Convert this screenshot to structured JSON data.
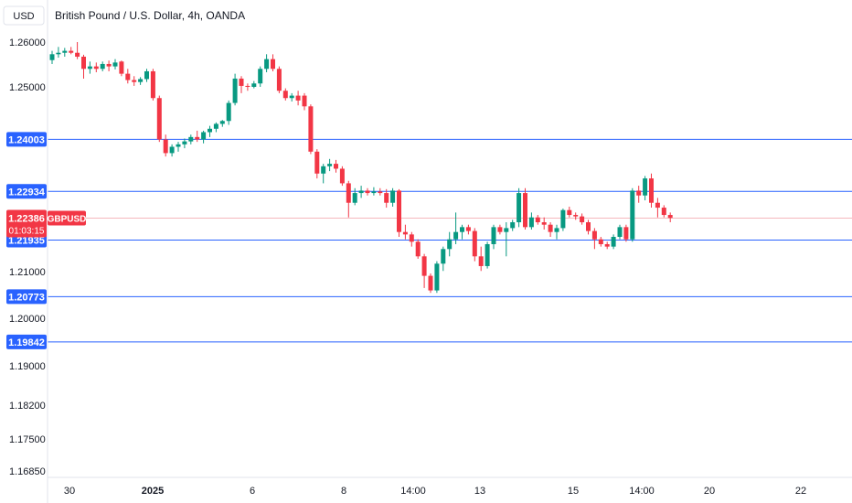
{
  "header": {
    "currency_button": "USD",
    "title": "British Pound / U.S. Dollar, 4h, OANDA"
  },
  "colors": {
    "up": "#089981",
    "down": "#f23645",
    "level_line": "#2962ff",
    "level_badge": "#2962ff",
    "price_badge": "#f23645",
    "price_line": "#f5b7bd"
  },
  "chart_data": {
    "type": "candlestick",
    "symbol": "GBPUSD",
    "y_ticks": [
      "1.26000",
      "1.25000",
      "1.21000",
      "1.20000",
      "1.19000",
      "1.18200",
      "1.17500",
      "1.16850"
    ],
    "x_ticks": [
      "30",
      "2025",
      "6",
      "8",
      "14:00",
      "13",
      "15",
      "14:00",
      "20",
      "22"
    ],
    "levels": [
      1.24003,
      1.22934,
      1.21935,
      1.20773,
      1.19842
    ],
    "level_labels": [
      "1.24003",
      "1.22934",
      "1.21935",
      "1.20773",
      "1.19842"
    ],
    "last_price": "1.22386",
    "last_price_value": 1.22386,
    "countdown": "01:03:15",
    "candles": [
      [
        1.2563,
        1.2582,
        1.2555,
        1.2575
      ],
      [
        1.2575,
        1.259,
        1.2568,
        1.2578
      ],
      [
        1.2578,
        1.2588,
        1.257,
        1.2582
      ],
      [
        1.2582,
        1.259,
        1.2575,
        1.2578
      ],
      [
        1.2578,
        1.26,
        1.2565,
        1.257
      ],
      [
        1.257,
        1.2574,
        1.2525,
        1.2545
      ],
      [
        1.2545,
        1.256,
        1.2535,
        1.255
      ],
      [
        1.255,
        1.2558,
        1.2538,
        1.2545
      ],
      [
        1.2545,
        1.256,
        1.254,
        1.2555
      ],
      [
        1.2555,
        1.2562,
        1.254,
        1.255
      ],
      [
        1.255,
        1.2565,
        1.2544,
        1.2558
      ],
      [
        1.256,
        1.2562,
        1.253,
        1.2535
      ],
      [
        1.2535,
        1.2545,
        1.2515,
        1.2522
      ],
      [
        1.2522,
        1.253,
        1.251,
        1.2518
      ],
      [
        1.2518,
        1.2528,
        1.2512,
        1.2524
      ],
      [
        1.2524,
        1.2545,
        1.2518,
        1.254
      ],
      [
        1.254,
        1.2545,
        1.248,
        1.2485
      ],
      [
        1.2485,
        1.249,
        1.2395,
        1.24
      ],
      [
        1.24,
        1.241,
        1.2365,
        1.2372
      ],
      [
        1.2372,
        1.239,
        1.2365,
        1.2385
      ],
      [
        1.2385,
        1.2395,
        1.2375,
        1.239
      ],
      [
        1.239,
        1.2402,
        1.2382,
        1.2396
      ],
      [
        1.2396,
        1.241,
        1.239,
        1.2405
      ],
      [
        1.2405,
        1.2418,
        1.2395,
        1.24
      ],
      [
        1.24,
        1.2418,
        1.2392,
        1.2415
      ],
      [
        1.2415,
        1.2428,
        1.2405,
        1.2422
      ],
      [
        1.2422,
        1.2435,
        1.2415,
        1.2432
      ],
      [
        1.2432,
        1.244,
        1.2426,
        1.2438
      ],
      [
        1.2438,
        1.248,
        1.243,
        1.2475
      ],
      [
        1.2475,
        1.2535,
        1.247,
        1.2525
      ],
      [
        1.2525,
        1.253,
        1.2495,
        1.251
      ],
      [
        1.251,
        1.2515,
        1.25,
        1.2508
      ],
      [
        1.2508,
        1.252,
        1.2505,
        1.2515
      ],
      [
        1.2515,
        1.255,
        1.2508,
        1.2545
      ],
      [
        1.2545,
        1.2575,
        1.2538,
        1.2565
      ],
      [
        1.2565,
        1.2575,
        1.254,
        1.2545
      ],
      [
        1.2545,
        1.255,
        1.2495,
        1.25
      ],
      [
        1.25,
        1.2505,
        1.248,
        1.2485
      ],
      [
        1.2485,
        1.2495,
        1.2478,
        1.249
      ],
      [
        1.249,
        1.25,
        1.247,
        1.248
      ],
      [
        1.249,
        1.2495,
        1.246,
        1.2468
      ],
      [
        1.2468,
        1.2472,
        1.237,
        1.2375
      ],
      [
        1.2375,
        1.238,
        1.232,
        1.233
      ],
      [
        1.233,
        1.235,
        1.231,
        1.2345
      ],
      [
        1.2345,
        1.236,
        1.2335,
        1.235
      ],
      [
        1.235,
        1.2358,
        1.2332,
        1.234
      ],
      [
        1.234,
        1.2345,
        1.2305,
        1.231
      ],
      [
        1.231,
        1.2315,
        1.224,
        1.227
      ],
      [
        1.227,
        1.23,
        1.2265,
        1.229
      ],
      [
        1.229,
        1.2305,
        1.228,
        1.2295
      ],
      [
        1.2295,
        1.23,
        1.2285,
        1.229
      ],
      [
        1.229,
        1.2302,
        1.2285,
        1.2293
      ],
      [
        1.2293,
        1.23,
        1.2285,
        1.229
      ],
      [
        1.229,
        1.2298,
        1.226,
        1.227
      ],
      [
        1.227,
        1.23,
        1.2262,
        1.2295
      ],
      [
        1.2295,
        1.2298,
        1.22,
        1.221
      ],
      [
        1.221,
        1.2225,
        1.2195,
        1.2205
      ],
      [
        1.2205,
        1.221,
        1.218,
        1.219
      ],
      [
        1.219,
        1.2195,
        1.2155,
        1.216
      ],
      [
        1.216,
        1.2165,
        1.2095,
        1.212
      ],
      [
        1.212,
        1.2125,
        1.2085,
        1.209
      ],
      [
        1.209,
        1.215,
        1.2085,
        1.2145
      ],
      [
        1.2145,
        1.218,
        1.213,
        1.2175
      ],
      [
        1.2175,
        1.221,
        1.216,
        1.2195
      ],
      [
        1.2195,
        1.225,
        1.2185,
        1.221
      ],
      [
        1.221,
        1.2225,
        1.2195,
        1.222
      ],
      [
        1.222,
        1.2225,
        1.2205,
        1.2212
      ],
      [
        1.2212,
        1.2218,
        1.215,
        1.216
      ],
      [
        1.216,
        1.218,
        1.213,
        1.214
      ],
      [
        1.214,
        1.219,
        1.2135,
        1.2185
      ],
      [
        1.2185,
        1.2225,
        1.2175,
        1.222
      ],
      [
        1.222,
        1.2225,
        1.2205,
        1.221
      ],
      [
        1.221,
        1.223,
        1.216,
        1.2218
      ],
      [
        1.2218,
        1.2235,
        1.2212,
        1.223
      ],
      [
        1.223,
        1.23,
        1.222,
        1.229
      ],
      [
        1.229,
        1.23,
        1.2215,
        1.222
      ],
      [
        1.222,
        1.225,
        1.2215,
        1.224
      ],
      [
        1.224,
        1.2245,
        1.2225,
        1.223
      ],
      [
        1.223,
        1.224,
        1.2215,
        1.2225
      ],
      [
        1.2225,
        1.223,
        1.22,
        1.221
      ],
      [
        1.221,
        1.2225,
        1.2195,
        1.2218
      ],
      [
        1.2218,
        1.2258,
        1.2212,
        1.2255
      ],
      [
        1.2255,
        1.2262,
        1.224,
        1.2245
      ],
      [
        1.2245,
        1.225,
        1.2235,
        1.2242
      ],
      [
        1.2242,
        1.2248,
        1.2225,
        1.223
      ],
      [
        1.223,
        1.2235,
        1.2205,
        1.2212
      ],
      [
        1.2212,
        1.2218,
        1.2175,
        1.2195
      ],
      [
        1.2195,
        1.22,
        1.218,
        1.2185
      ],
      [
        1.2185,
        1.219,
        1.2175,
        1.218
      ],
      [
        1.218,
        1.2205,
        1.2175,
        1.22
      ],
      [
        1.22,
        1.2225,
        1.2195,
        1.222
      ],
      [
        1.222,
        1.2225,
        1.219,
        1.2195
      ],
      [
        1.2195,
        1.23,
        1.219,
        1.2295
      ],
      [
        1.2295,
        1.2305,
        1.227,
        1.2285
      ],
      [
        1.2285,
        1.2325,
        1.2275,
        1.232
      ],
      [
        1.232,
        1.233,
        1.226,
        1.227
      ],
      [
        1.227,
        1.228,
        1.224,
        1.226
      ],
      [
        1.226,
        1.2265,
        1.224,
        1.2245
      ],
      [
        1.2245,
        1.225,
        1.223,
        1.2239
      ]
    ]
  }
}
